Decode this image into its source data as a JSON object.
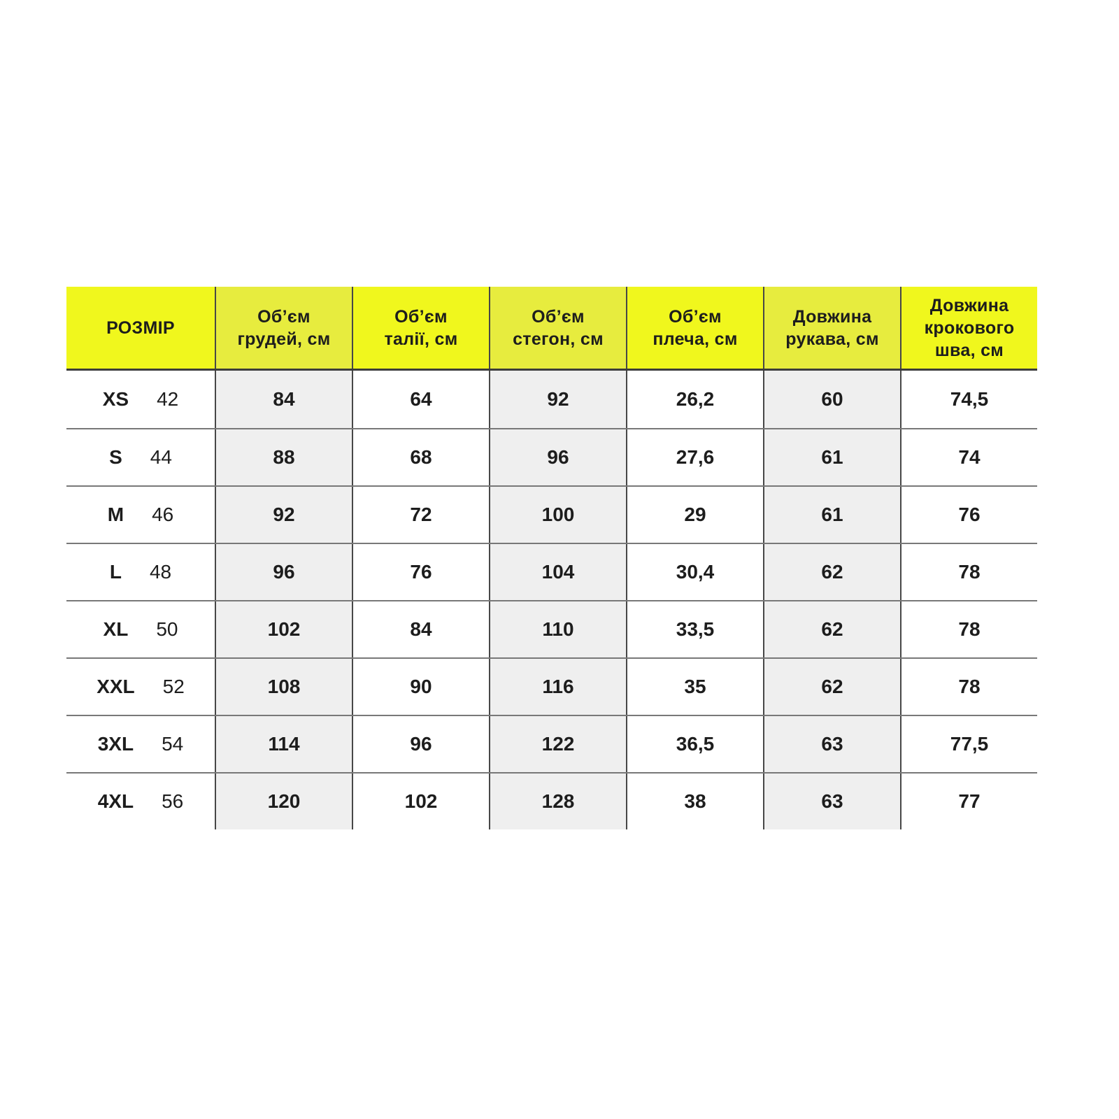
{
  "table": {
    "columns": [
      {
        "key": "size",
        "label": "РОЗМІР",
        "striped": false
      },
      {
        "key": "chest",
        "label": "Об’єм\nгрудей, см",
        "striped": true
      },
      {
        "key": "waist",
        "label": "Об’єм\nталії, см",
        "striped": false
      },
      {
        "key": "hips",
        "label": "Об’єм\nстегон, см",
        "striped": true
      },
      {
        "key": "shoulder",
        "label": "Об’єм\nплеча, см",
        "striped": false
      },
      {
        "key": "sleeve",
        "label": "Довжина\nрукава, см",
        "striped": true
      },
      {
        "key": "inseam",
        "label": "Довжина\nкрокового\nшва, см",
        "striped": false
      }
    ],
    "rows": [
      {
        "size": "XS",
        "size_num": "42",
        "chest": "84",
        "waist": "64",
        "hips": "92",
        "shoulder": "26,2",
        "sleeve": "60",
        "inseam": "74,5"
      },
      {
        "size": "S",
        "size_num": "44",
        "chest": "88",
        "waist": "68",
        "hips": "96",
        "shoulder": "27,6",
        "sleeve": "61",
        "inseam": "74"
      },
      {
        "size": "M",
        "size_num": "46",
        "chest": "92",
        "waist": "72",
        "hips": "100",
        "shoulder": "29",
        "sleeve": "61",
        "inseam": "76"
      },
      {
        "size": "L",
        "size_num": "48",
        "chest": "96",
        "waist": "76",
        "hips": "104",
        "shoulder": "30,4",
        "sleeve": "62",
        "inseam": "78"
      },
      {
        "size": "XL",
        "size_num": "50",
        "chest": "102",
        "waist": "84",
        "hips": "110",
        "shoulder": "33,5",
        "sleeve": "62",
        "inseam": "78"
      },
      {
        "size": "XXL",
        "size_num": "52",
        "chest": "108",
        "waist": "90",
        "hips": "116",
        "shoulder": "35",
        "sleeve": "62",
        "inseam": "78"
      },
      {
        "size": "3XL",
        "size_num": "54",
        "chest": "114",
        "waist": "96",
        "hips": "122",
        "shoulder": "36,5",
        "sleeve": "63",
        "inseam": "77,5"
      },
      {
        "size": "4XL",
        "size_num": "56",
        "chest": "120",
        "waist": "102",
        "hips": "128",
        "shoulder": "38",
        "sleeve": "63",
        "inseam": "77"
      }
    ],
    "colors": {
      "header_yellow": "#f0f71d",
      "header_yellow_striped": "#e7ec3e",
      "stripe_gray": "#efefef",
      "text": "#1d1d1d",
      "vertical_line": "#474747",
      "horizontal_line": "#787878",
      "header_bottom_line": "#3c3c3c"
    }
  },
  "chart_data": {
    "type": "table",
    "title": "",
    "columns": [
      "РОЗМІР",
      "Об’єм грудей, см",
      "Об’єм талії, см",
      "Об’єм стегон, см",
      "Об’єм плеча, см",
      "Довжина рукава, см",
      "Довжина крокового шва, см"
    ],
    "rows": [
      [
        "XS 42",
        84,
        64,
        92,
        26.2,
        60,
        74.5
      ],
      [
        "S 44",
        88,
        68,
        96,
        27.6,
        61,
        74
      ],
      [
        "M 46",
        92,
        72,
        100,
        29,
        61,
        76
      ],
      [
        "L 48",
        96,
        76,
        104,
        30.4,
        62,
        78
      ],
      [
        "XL 50",
        102,
        84,
        110,
        33.5,
        62,
        78
      ],
      [
        "XXL 52",
        108,
        90,
        116,
        35,
        62,
        78
      ],
      [
        "3XL 54",
        114,
        96,
        122,
        36.5,
        63,
        77.5
      ],
      [
        "4XL 56",
        120,
        102,
        128,
        38,
        63,
        77
      ]
    ],
    "layout": {
      "header_background": "#f0f71d",
      "striped_columns": [
        "chest",
        "hips",
        "sleeve"
      ],
      "grid": true,
      "legend": "none"
    }
  }
}
